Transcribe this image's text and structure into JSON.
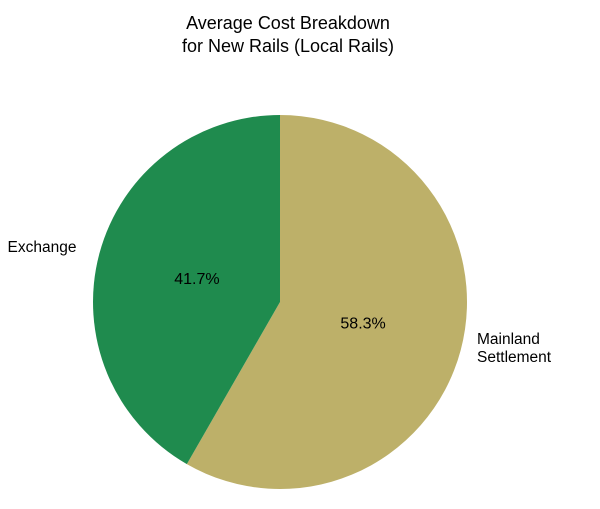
{
  "chart_data": {
    "type": "pie",
    "title": "Average Cost Breakdown\nfor New Rails (Local Rails)",
    "labels": [
      "Mainland Settlement",
      "Exchange"
    ],
    "values": [
      58.3,
      41.7
    ],
    "value_labels": [
      "58.3%",
      "41.7%"
    ],
    "colors": [
      "#bdb069",
      "#1f8b4e"
    ],
    "start_angle_deg": -90,
    "direction": "clockwise",
    "legend_position": "none",
    "label_position": "outside",
    "background_color": "#ffffff",
    "text_color": "#000000"
  }
}
